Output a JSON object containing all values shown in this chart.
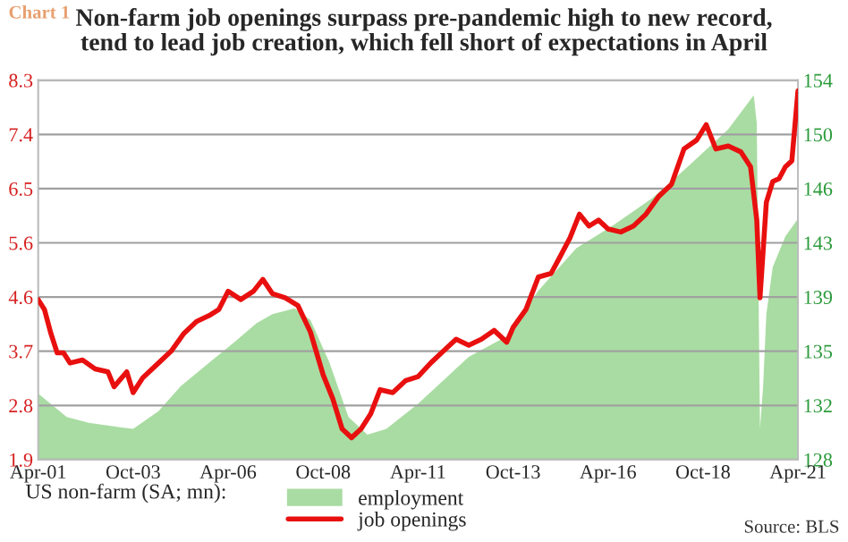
{
  "chart_data": {
    "type": "line",
    "title": "Non-farm job openings surpass pre-pandemic high to new record,\ntend to lead job creation, which fell short of expectations in April",
    "annotations": [
      "Chart 1",
      "Source: BLS"
    ],
    "legend_title": "US non-farm (SA; mn):",
    "legend": "bottom",
    "grid": "y",
    "xlim": [
      "2001-04",
      "2021-04"
    ],
    "xticks": [
      {
        "value": "2001-04",
        "label": "Apr-01"
      },
      {
        "value": "2003-10",
        "label": "Oct-03"
      },
      {
        "value": "2006-04",
        "label": "Apr-06"
      },
      {
        "value": "2008-10",
        "label": "Oct-08"
      },
      {
        "value": "2011-04",
        "label": "Apr-11"
      },
      {
        "value": "2013-10",
        "label": "Oct-13"
      },
      {
        "value": "2016-04",
        "label": "Apr-16"
      },
      {
        "value": "2018-10",
        "label": "Oct-18"
      },
      {
        "value": "2021-04",
        "label": "Apr-21"
      }
    ],
    "ylim": [
      1.9,
      8.3
    ],
    "yticks": [
      {
        "value": 1.9,
        "label": "1.9"
      },
      {
        "value": 2.814,
        "label": "2.8"
      },
      {
        "value": 3.729,
        "label": "3.7"
      },
      {
        "value": 4.643,
        "label": "4.6"
      },
      {
        "value": 5.557,
        "label": "5.6"
      },
      {
        "value": 6.471,
        "label": "6.5"
      },
      {
        "value": 7.386,
        "label": "7.4"
      },
      {
        "value": 8.3,
        "label": "8.3"
      }
    ],
    "y2lim": [
      128,
      153.83
    ],
    "y2ticks": [
      {
        "value": 128,
        "label": "128"
      },
      {
        "value": 131.69,
        "label": "132"
      },
      {
        "value": 135.38,
        "label": "135"
      },
      {
        "value": 139.07,
        "label": "139"
      },
      {
        "value": 142.76,
        "label": "143"
      },
      {
        "value": 146.45,
        "label": "146"
      },
      {
        "value": 150.14,
        "label": "150"
      },
      {
        "value": 153.83,
        "label": "154"
      }
    ],
    "series": [
      {
        "name": "employment",
        "type": "area",
        "axis": "y2",
        "color": "#a9dca2",
        "x": [
          "2001-04",
          "2002-01",
          "2002-08",
          "2003-06",
          "2003-10",
          "2004-06",
          "2005-01",
          "2005-10",
          "2006-06",
          "2007-01",
          "2007-06",
          "2008-01",
          "2008-06",
          "2008-12",
          "2009-06",
          "2009-12",
          "2010-06",
          "2011-01",
          "2011-04",
          "2012-08",
          "2013-08",
          "2014-06",
          "2015-06",
          "2016-06",
          "2017-06",
          "2018-06",
          "2019-06",
          "2020-02",
          "2020-03",
          "2020-04",
          "2020-05",
          "2020-06",
          "2020-08",
          "2020-12",
          "2021-04"
        ],
        "values": [
          132.5,
          130.9,
          130.5,
          130.2,
          130.1,
          131.3,
          133.0,
          134.6,
          136.0,
          137.3,
          137.9,
          138.3,
          137.5,
          134.6,
          130.9,
          129.7,
          130.1,
          131.3,
          131.8,
          135.0,
          136.4,
          139.5,
          142.4,
          144.0,
          145.8,
          148.1,
          150.5,
          152.8,
          150.9,
          130.1,
          133.0,
          137.9,
          141.1,
          143.2,
          144.4
        ]
      },
      {
        "name": "job openings",
        "color": "#e8100f",
        "x": [
          "2001-04",
          "2001-06",
          "2001-08",
          "2001-10",
          "2001-12",
          "2002-02",
          "2002-06",
          "2002-10",
          "2003-02",
          "2003-04",
          "2003-08",
          "2003-10",
          "2004-01",
          "2004-06",
          "2004-10",
          "2005-02",
          "2005-06",
          "2005-10",
          "2006-01",
          "2006-04",
          "2006-08",
          "2006-12",
          "2007-03",
          "2007-06",
          "2007-10",
          "2008-02",
          "2008-06",
          "2008-10",
          "2009-01",
          "2009-04",
          "2009-07",
          "2009-10",
          "2010-01",
          "2010-04",
          "2010-08",
          "2010-12",
          "2011-04",
          "2011-08",
          "2011-12",
          "2012-04",
          "2012-08",
          "2012-12",
          "2013-04",
          "2013-08",
          "2013-10",
          "2014-02",
          "2014-06",
          "2014-10",
          "2015-01",
          "2015-04",
          "2015-07",
          "2015-10",
          "2016-01",
          "2016-04",
          "2016-08",
          "2016-12",
          "2017-04",
          "2017-08",
          "2017-12",
          "2018-04",
          "2018-08",
          "2018-11",
          "2019-02",
          "2019-06",
          "2019-10",
          "2020-01",
          "2020-03",
          "2020-04",
          "2020-06",
          "2020-08",
          "2020-10",
          "2020-12",
          "2021-02",
          "2021-04"
        ],
        "values": [
          4.6,
          4.43,
          4.03,
          3.7,
          3.7,
          3.53,
          3.58,
          3.43,
          3.38,
          3.13,
          3.38,
          3.03,
          3.28,
          3.53,
          3.73,
          4.03,
          4.23,
          4.33,
          4.43,
          4.74,
          4.6,
          4.74,
          4.94,
          4.7,
          4.63,
          4.5,
          4.05,
          3.33,
          2.93,
          2.42,
          2.27,
          2.42,
          2.67,
          3.08,
          3.03,
          3.23,
          3.3,
          3.53,
          3.73,
          3.93,
          3.83,
          3.93,
          4.08,
          3.88,
          4.13,
          4.43,
          4.98,
          5.04,
          5.34,
          5.64,
          6.04,
          5.84,
          5.94,
          5.79,
          5.74,
          5.84,
          6.04,
          6.34,
          6.54,
          7.14,
          7.29,
          7.55,
          7.14,
          7.19,
          7.09,
          6.84,
          5.94,
          4.63,
          6.24,
          6.59,
          6.64,
          6.84,
          6.94,
          8.12
        ]
      }
    ]
  }
}
